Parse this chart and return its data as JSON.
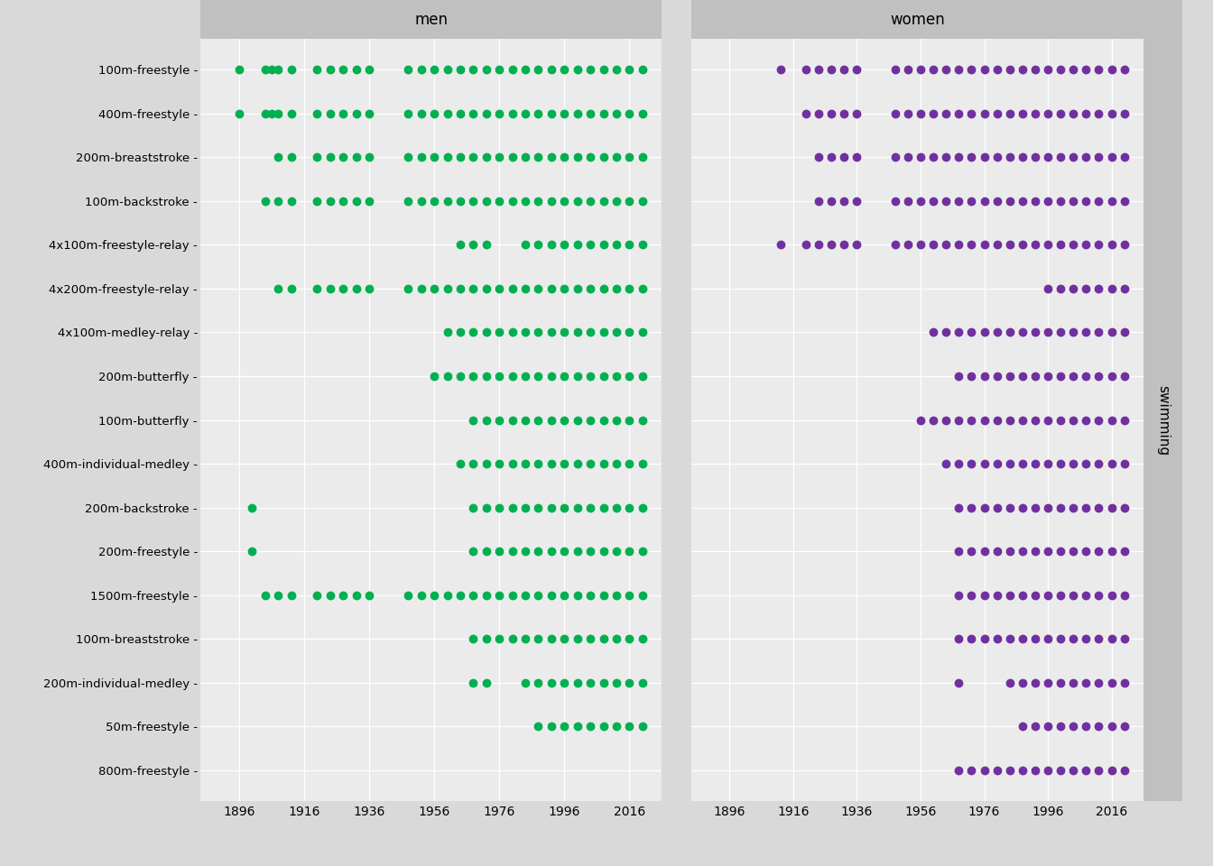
{
  "olympic_years": [
    1896,
    1900,
    1904,
    1906,
    1908,
    1912,
    1920,
    1924,
    1928,
    1932,
    1936,
    1948,
    1952,
    1956,
    1960,
    1964,
    1968,
    1972,
    1976,
    1980,
    1984,
    1988,
    1992,
    1996,
    2000,
    2004,
    2008,
    2012,
    2016,
    2020
  ],
  "events": [
    "100m-freestyle",
    "400m-freestyle",
    "200m-breaststroke",
    "100m-backstroke",
    "4x100m-freestyle-relay",
    "4x200m-freestyle-relay",
    "4x100m-medley-relay",
    "200m-butterfly",
    "100m-butterfly",
    "400m-individual-medley",
    "200m-backstroke",
    "200m-freestyle",
    "1500m-freestyle",
    "100m-breaststroke",
    "200m-individual-medley",
    "50m-freestyle",
    "800m-freestyle"
  ],
  "men_years": {
    "100m-freestyle": [
      1896,
      1904,
      1906,
      1908,
      1912,
      1920,
      1924,
      1928,
      1932,
      1936,
      1948,
      1952,
      1956,
      1960,
      1964,
      1968,
      1972,
      1976,
      1980,
      1984,
      1988,
      1992,
      1996,
      2000,
      2004,
      2008,
      2012,
      2016,
      2020
    ],
    "400m-freestyle": [
      1896,
      1904,
      1906,
      1908,
      1912,
      1920,
      1924,
      1928,
      1932,
      1936,
      1948,
      1952,
      1956,
      1960,
      1964,
      1968,
      1972,
      1976,
      1980,
      1984,
      1988,
      1992,
      1996,
      2000,
      2004,
      2008,
      2012,
      2016,
      2020
    ],
    "200m-breaststroke": [
      1908,
      1912,
      1920,
      1924,
      1928,
      1932,
      1936,
      1948,
      1952,
      1956,
      1960,
      1964,
      1968,
      1972,
      1976,
      1980,
      1984,
      1988,
      1992,
      1996,
      2000,
      2004,
      2008,
      2012,
      2016,
      2020
    ],
    "100m-backstroke": [
      1904,
      1908,
      1912,
      1920,
      1924,
      1928,
      1932,
      1936,
      1948,
      1952,
      1956,
      1960,
      1964,
      1968,
      1972,
      1976,
      1980,
      1984,
      1988,
      1992,
      1996,
      2000,
      2004,
      2008,
      2012,
      2016,
      2020
    ],
    "4x100m-freestyle-relay": [
      1964,
      1968,
      1972,
      1984,
      1988,
      1992,
      1996,
      2000,
      2004,
      2008,
      2012,
      2016,
      2020
    ],
    "4x200m-freestyle-relay": [
      1908,
      1912,
      1920,
      1924,
      1928,
      1932,
      1936,
      1948,
      1952,
      1956,
      1960,
      1964,
      1968,
      1972,
      1976,
      1980,
      1984,
      1988,
      1992,
      1996,
      2000,
      2004,
      2008,
      2012,
      2016,
      2020
    ],
    "4x100m-medley-relay": [
      1960,
      1964,
      1968,
      1972,
      1976,
      1980,
      1984,
      1988,
      1992,
      1996,
      2000,
      2004,
      2008,
      2012,
      2016,
      2020
    ],
    "200m-butterfly": [
      1956,
      1960,
      1964,
      1968,
      1972,
      1976,
      1980,
      1984,
      1988,
      1992,
      1996,
      2000,
      2004,
      2008,
      2012,
      2016,
      2020
    ],
    "100m-butterfly": [
      1968,
      1972,
      1976,
      1980,
      1984,
      1988,
      1992,
      1996,
      2000,
      2004,
      2008,
      2012,
      2016,
      2020
    ],
    "400m-individual-medley": [
      1964,
      1968,
      1972,
      1976,
      1980,
      1984,
      1988,
      1992,
      1996,
      2000,
      2004,
      2008,
      2012,
      2016,
      2020
    ],
    "200m-backstroke": [
      1900,
      1968,
      1972,
      1976,
      1980,
      1984,
      1988,
      1992,
      1996,
      2000,
      2004,
      2008,
      2012,
      2016,
      2020
    ],
    "200m-freestyle": [
      1900,
      1968,
      1972,
      1976,
      1980,
      1984,
      1988,
      1992,
      1996,
      2000,
      2004,
      2008,
      2012,
      2016,
      2020
    ],
    "1500m-freestyle": [
      1904,
      1908,
      1912,
      1920,
      1924,
      1928,
      1932,
      1936,
      1948,
      1952,
      1956,
      1960,
      1964,
      1968,
      1972,
      1976,
      1980,
      1984,
      1988,
      1992,
      1996,
      2000,
      2004,
      2008,
      2012,
      2016,
      2020
    ],
    "100m-breaststroke": [
      1968,
      1972,
      1976,
      1980,
      1984,
      1988,
      1992,
      1996,
      2000,
      2004,
      2008,
      2012,
      2016,
      2020
    ],
    "200m-individual-medley": [
      1968,
      1972,
      1984,
      1988,
      1992,
      1996,
      2000,
      2004,
      2008,
      2012,
      2016,
      2020
    ],
    "50m-freestyle": [
      1988,
      1992,
      1996,
      2000,
      2004,
      2008,
      2012,
      2016,
      2020
    ],
    "800m-freestyle": []
  },
  "women_years": {
    "100m-freestyle": [
      1912,
      1920,
      1924,
      1928,
      1932,
      1936,
      1948,
      1952,
      1956,
      1960,
      1964,
      1968,
      1972,
      1976,
      1980,
      1984,
      1988,
      1992,
      1996,
      2000,
      2004,
      2008,
      2012,
      2016,
      2020
    ],
    "400m-freestyle": [
      1920,
      1924,
      1928,
      1932,
      1936,
      1948,
      1952,
      1956,
      1960,
      1964,
      1968,
      1972,
      1976,
      1980,
      1984,
      1988,
      1992,
      1996,
      2000,
      2004,
      2008,
      2012,
      2016,
      2020
    ],
    "200m-breaststroke": [
      1924,
      1928,
      1932,
      1936,
      1948,
      1952,
      1956,
      1960,
      1964,
      1968,
      1972,
      1976,
      1980,
      1984,
      1988,
      1992,
      1996,
      2000,
      2004,
      2008,
      2012,
      2016,
      2020
    ],
    "100m-backstroke": [
      1924,
      1928,
      1932,
      1936,
      1948,
      1952,
      1956,
      1960,
      1964,
      1968,
      1972,
      1976,
      1980,
      1984,
      1988,
      1992,
      1996,
      2000,
      2004,
      2008,
      2012,
      2016,
      2020
    ],
    "4x100m-freestyle-relay": [
      1912,
      1920,
      1924,
      1928,
      1932,
      1936,
      1948,
      1952,
      1956,
      1960,
      1964,
      1968,
      1972,
      1976,
      1980,
      1984,
      1988,
      1992,
      1996,
      2000,
      2004,
      2008,
      2012,
      2016,
      2020
    ],
    "4x200m-freestyle-relay": [
      1996,
      2000,
      2004,
      2008,
      2012,
      2016,
      2020
    ],
    "4x100m-medley-relay": [
      1960,
      1964,
      1968,
      1972,
      1976,
      1980,
      1984,
      1988,
      1992,
      1996,
      2000,
      2004,
      2008,
      2012,
      2016,
      2020
    ],
    "200m-butterfly": [
      1968,
      1972,
      1976,
      1980,
      1984,
      1988,
      1992,
      1996,
      2000,
      2004,
      2008,
      2012,
      2016,
      2020
    ],
    "100m-butterfly": [
      1956,
      1960,
      1964,
      1968,
      1972,
      1976,
      1980,
      1984,
      1988,
      1992,
      1996,
      2000,
      2004,
      2008,
      2012,
      2016,
      2020
    ],
    "400m-individual-medley": [
      1964,
      1968,
      1972,
      1976,
      1980,
      1984,
      1988,
      1992,
      1996,
      2000,
      2004,
      2008,
      2012,
      2016,
      2020
    ],
    "200m-backstroke": [
      1968,
      1972,
      1976,
      1980,
      1984,
      1988,
      1992,
      1996,
      2000,
      2004,
      2008,
      2012,
      2016,
      2020
    ],
    "200m-freestyle": [
      1968,
      1972,
      1976,
      1980,
      1984,
      1988,
      1992,
      1996,
      2000,
      2004,
      2008,
      2012,
      2016,
      2020
    ],
    "1500m-freestyle": [
      1968,
      1972,
      1976,
      1980,
      1984,
      1988,
      1992,
      1996,
      2000,
      2004,
      2008,
      2012,
      2016,
      2020
    ],
    "100m-breaststroke": [
      1968,
      1972,
      1976,
      1980,
      1984,
      1988,
      1992,
      1996,
      2000,
      2004,
      2008,
      2012,
      2016,
      2020
    ],
    "200m-individual-medley": [
      1968,
      1984,
      1988,
      1992,
      1996,
      2000,
      2004,
      2008,
      2012,
      2016,
      2020
    ],
    "50m-freestyle": [
      1988,
      1992,
      1996,
      2000,
      2004,
      2008,
      2012,
      2016,
      2020
    ],
    "800m-freestyle": [
      1968,
      1972,
      1976,
      1980,
      1984,
      1988,
      1992,
      1996,
      2000,
      2004,
      2008,
      2012,
      2016,
      2020
    ]
  },
  "men_color": "#00B050",
  "women_color": "#7030A0",
  "background_color": "#D9D9D9",
  "panel_bg": "#EBEBEB",
  "header_bg": "#C0C0C0",
  "strip_bg": "#C0C0C0",
  "men_label": "men",
  "women_label": "women",
  "sport_label": "swimming",
  "x_ticks": [
    1896,
    1916,
    1936,
    1956,
    1976,
    1996,
    2016
  ],
  "x_min": 1884,
  "x_max": 2026,
  "dot_size": 50,
  "label_fontsize": 9.5,
  "tick_fontsize": 10,
  "header_fontsize": 12,
  "strip_fontsize": 11
}
